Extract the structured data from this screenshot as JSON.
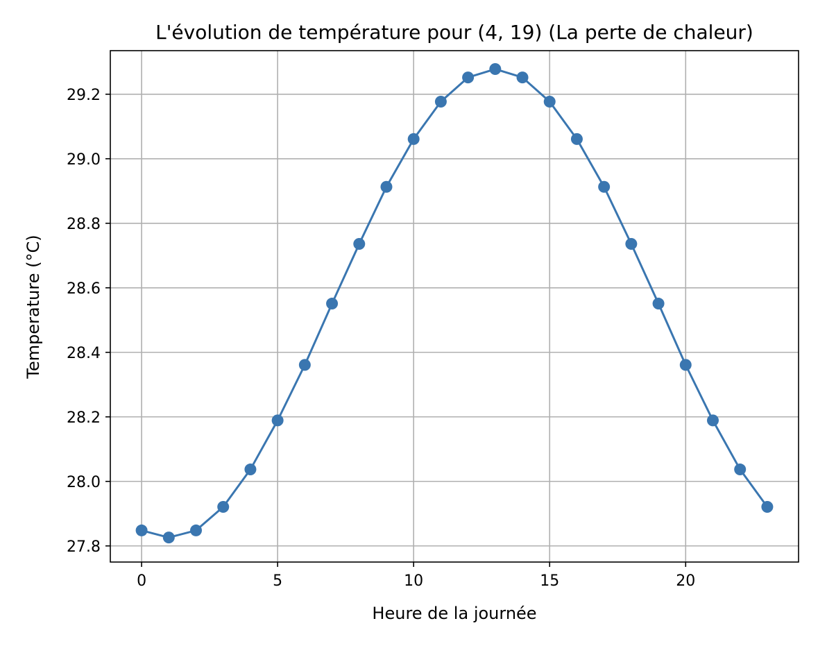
{
  "chart_data": {
    "type": "line",
    "title": "L'évolution de température pour (4, 19) (La perte de chaleur)",
    "xlabel": "Heure de la journée",
    "ylabel": "Temperature (°C)",
    "xlim": [
      -1.15,
      24.15
    ],
    "ylim": [
      27.75,
      29.335
    ],
    "xticks": [
      0,
      5,
      10,
      15,
      20
    ],
    "xtick_labels": [
      "0",
      "5",
      "10",
      "15",
      "20"
    ],
    "yticks": [
      27.8,
      28.0,
      28.2,
      28.4,
      28.6,
      28.8,
      29.0,
      29.2
    ],
    "ytick_labels": [
      "27.8",
      "28.0",
      "28.2",
      "28.4",
      "28.6",
      "28.8",
      "29.0",
      "29.2"
    ],
    "grid": true,
    "marker": "circle",
    "color": "#3a76b0",
    "series": [
      {
        "x": [
          0,
          1,
          2,
          3,
          4,
          5,
          6,
          7,
          8,
          9,
          10,
          11,
          12,
          13,
          14,
          15,
          16,
          17,
          18,
          19,
          20,
          21,
          22,
          23
        ],
        "values": [
          27.848,
          27.826,
          27.848,
          27.921,
          28.037,
          28.189,
          28.361,
          28.551,
          28.736,
          28.913,
          29.061,
          29.177,
          29.252,
          29.278,
          29.252,
          29.177,
          29.061,
          28.913,
          28.736,
          28.551,
          28.361,
          28.189,
          28.037,
          27.921
        ]
      }
    ]
  }
}
